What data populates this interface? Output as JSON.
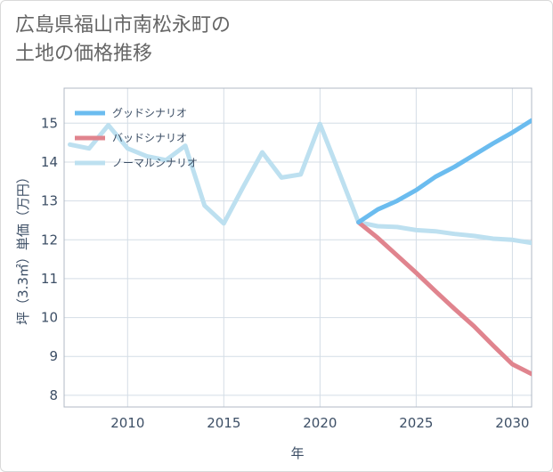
{
  "page": {
    "title_line1": "広島県福山市南松永町の",
    "title_line2": "土地の価格推移"
  },
  "chart_data": {
    "type": "line",
    "title": "広島県福山市南松永町の土地の価格推移",
    "xlabel": "年",
    "ylabel": "坪（3.3㎡）単価（万円）",
    "xlim": [
      2006.7,
      2031
    ],
    "ylim": [
      7.7,
      15.9
    ],
    "xticks": [
      2010,
      2015,
      2020,
      2025,
      2030
    ],
    "yticks": [
      8,
      9,
      10,
      11,
      12,
      13,
      14,
      15
    ],
    "grid": true,
    "legend_position": "top-left",
    "series": [
      {
        "name": "グッドシナリオ",
        "color": "#6bbcef",
        "x": [
          2022,
          2023,
          2024,
          2025,
          2026,
          2027,
          2028,
          2029,
          2030,
          2031
        ],
        "y": [
          12.45,
          12.78,
          13.0,
          13.28,
          13.62,
          13.88,
          14.18,
          14.48,
          14.76,
          15.07
        ]
      },
      {
        "name": "バッドシナリオ",
        "color": "#e0848e",
        "x": [
          2022,
          2023,
          2024,
          2025,
          2026,
          2027,
          2028,
          2029,
          2030,
          2031
        ],
        "y": [
          12.45,
          12.05,
          11.6,
          11.15,
          10.68,
          10.22,
          9.78,
          9.28,
          8.8,
          8.55
        ]
      },
      {
        "name": "ノーマルシナリオ",
        "color": "#bde0f0",
        "x": [
          2007,
          2008,
          2009,
          2010,
          2011,
          2012,
          2013,
          2014,
          2015,
          2016,
          2017,
          2018,
          2019,
          2020,
          2021,
          2022,
          2023,
          2024,
          2025,
          2026,
          2027,
          2028,
          2029,
          2030,
          2031
        ],
        "y": [
          14.45,
          14.35,
          14.95,
          14.35,
          14.15,
          14.05,
          14.42,
          12.88,
          12.42,
          13.35,
          14.25,
          13.6,
          13.68,
          14.98,
          13.72,
          12.45,
          12.35,
          12.33,
          12.25,
          12.22,
          12.15,
          12.1,
          12.03,
          12.0,
          11.92
        ]
      }
    ]
  }
}
